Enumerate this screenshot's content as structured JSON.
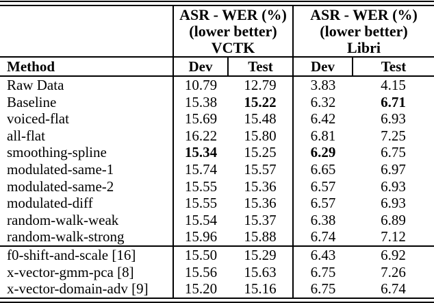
{
  "colors": {
    "text": "#000000",
    "background": "#ffffff",
    "rule": "#000000"
  },
  "table": {
    "method_header": "Method",
    "groups": [
      {
        "line1": "ASR - WER (%)",
        "line2": "(lower better)",
        "dataset": "VCTK"
      },
      {
        "line1": "ASR - WER (%)",
        "line2": "(lower better)",
        "dataset": "Libri"
      }
    ],
    "sub_headers": [
      "Dev",
      "Test",
      "Dev",
      "Test"
    ],
    "sections": [
      {
        "rows": [
          {
            "method": "Raw Data",
            "values": [
              "10.79",
              "12.79",
              "3.83",
              "4.15"
            ],
            "bold_indices": []
          },
          {
            "method": "Baseline",
            "values": [
              "15.38",
              "15.22",
              "6.32",
              "6.71"
            ],
            "bold_indices": [
              1,
              3
            ]
          },
          {
            "method": "voiced-flat",
            "values": [
              "15.69",
              "15.48",
              "6.42",
              "6.93"
            ],
            "bold_indices": []
          },
          {
            "method": "all-flat",
            "values": [
              "16.22",
              "15.80",
              "6.81",
              "7.25"
            ],
            "bold_indices": []
          },
          {
            "method": "smoothing-spline",
            "values": [
              "15.34",
              "15.25",
              "6.29",
              "6.75"
            ],
            "bold_indices": [
              0,
              2
            ]
          },
          {
            "method": "modulated-same-1",
            "values": [
              "15.74",
              "15.57",
              "6.65",
              "6.97"
            ],
            "bold_indices": []
          },
          {
            "method": "modulated-same-2",
            "values": [
              "15.55",
              "15.36",
              "6.57",
              "6.93"
            ],
            "bold_indices": []
          },
          {
            "method": "modulated-diff",
            "values": [
              "15.55",
              "15.36",
              "6.57",
              "6.93"
            ],
            "bold_indices": []
          },
          {
            "method": "random-walk-weak",
            "values": [
              "15.54",
              "15.37",
              "6.38",
              "6.89"
            ],
            "bold_indices": []
          },
          {
            "method": "random-walk-strong",
            "values": [
              "15.96",
              "15.88",
              "6.74",
              "7.12"
            ],
            "bold_indices": []
          }
        ]
      },
      {
        "rows": [
          {
            "method": "f0-shift-and-scale [16]",
            "values": [
              "15.50",
              "15.29",
              "6.43",
              "6.92"
            ],
            "bold_indices": []
          },
          {
            "method": "x-vector-gmm-pca [8]",
            "values": [
              "15.56",
              "15.63",
              "6.75",
              "7.26"
            ],
            "bold_indices": []
          },
          {
            "method": "x-vector-domain-adv [9]",
            "values": [
              "15.20",
              "15.16",
              "6.75",
              "6.74"
            ],
            "bold_indices": []
          }
        ]
      }
    ]
  }
}
